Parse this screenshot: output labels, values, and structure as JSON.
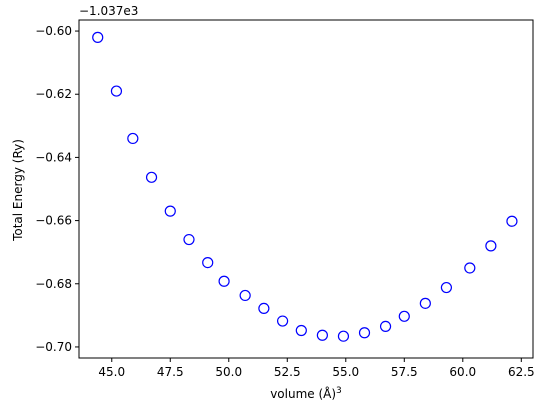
{
  "chart_data": {
    "type": "scatter",
    "title": "",
    "xlabel": "volume (Å)³",
    "xlabel_base": "volume (Å)",
    "xlabel_sup": "3",
    "ylabel": "Total Energy (Ry)",
    "offset_text": "−1.037e3",
    "y_offset": -1037,
    "xlim": [
      43.6,
      63.0
    ],
    "ylim": [
      -0.7035,
      -0.5965
    ],
    "x_ticks": [
      45.0,
      47.5,
      50.0,
      52.5,
      55.0,
      57.5,
      60.0,
      62.5
    ],
    "x_tick_labels": [
      "45.0",
      "47.5",
      "50.0",
      "52.5",
      "55.0",
      "57.5",
      "60.0",
      "62.5"
    ],
    "y_ticks": [
      -0.6,
      -0.62,
      -0.64,
      -0.66,
      -0.68,
      -0.7
    ],
    "y_tick_labels": [
      "−0.60",
      "−0.62",
      "−0.64",
      "−0.66",
      "−0.68",
      "−0.70"
    ],
    "grid": false,
    "marker": "open-circle",
    "marker_color": "#0000ff",
    "series": [
      {
        "x": [
          44.4,
          45.2,
          45.9,
          46.7,
          47.5,
          48.3,
          49.1,
          49.8,
          50.7,
          51.5,
          52.3,
          53.1,
          54.0,
          54.9,
          55.8,
          56.7,
          57.5,
          58.4,
          59.3,
          60.3,
          61.2,
          62.1
        ],
        "y": [
          -0.602,
          -0.619,
          -0.634,
          -0.6463,
          -0.657,
          -0.666,
          -0.6733,
          -0.6792,
          -0.6837,
          -0.6878,
          -0.6918,
          -0.6948,
          -0.6963,
          -0.6966,
          -0.6955,
          -0.6935,
          -0.6903,
          -0.6862,
          -0.6812,
          -0.675,
          -0.668,
          -0.6602
        ]
      }
    ]
  }
}
